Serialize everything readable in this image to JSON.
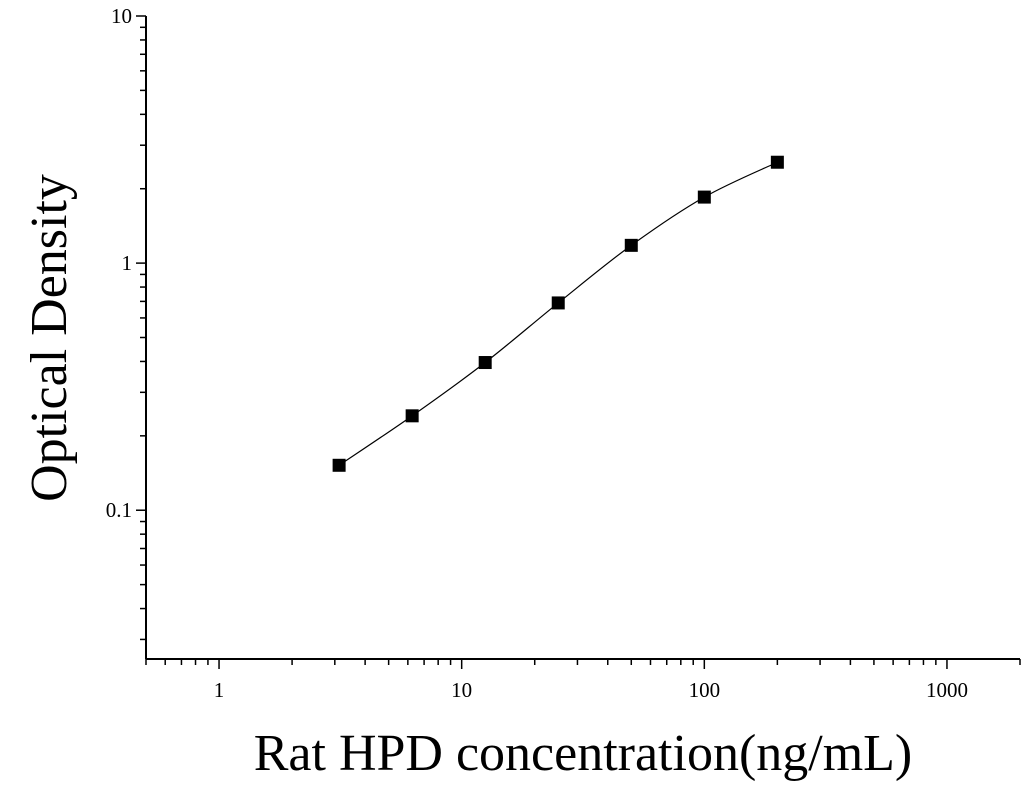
{
  "chart_data": {
    "type": "scatter",
    "xlabel": "Rat HPD concentration(ng/mL)",
    "ylabel": "Optical Density",
    "xscale": "log",
    "yscale": "log",
    "xlim": [
      0.5,
      2000
    ],
    "ylim": [
      0.025,
      10
    ],
    "x_tick_labels": [
      "1",
      "10",
      "100",
      "1000"
    ],
    "x_ticks": [
      1,
      10,
      100,
      1000
    ],
    "y_tick_labels": [
      "0.1",
      "1",
      "10"
    ],
    "y_ticks": [
      0.1,
      1,
      10
    ],
    "grid": false,
    "fit_line": true,
    "marker": "square",
    "series": [
      {
        "x": [
          3.125,
          6.25,
          12.5,
          25,
          50,
          100,
          200
        ],
        "y": [
          0.152,
          0.241,
          0.396,
          0.69,
          1.18,
          1.85,
          2.56
        ]
      }
    ]
  }
}
